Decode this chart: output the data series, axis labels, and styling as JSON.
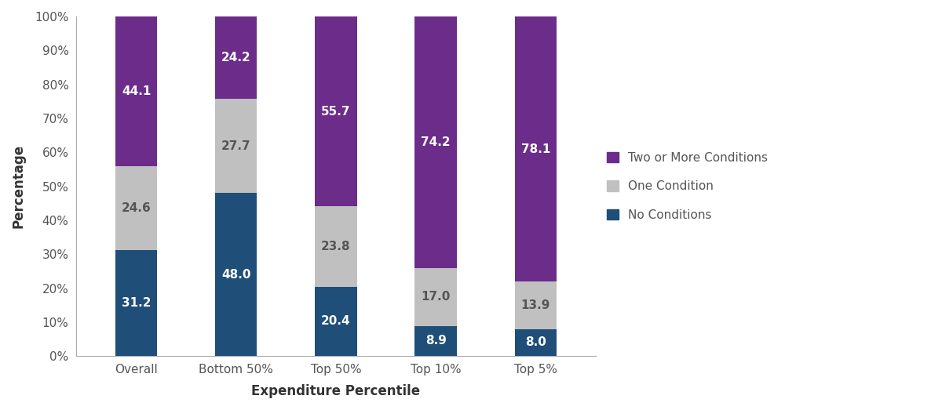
{
  "categories": [
    "Overall",
    "Bottom 50%",
    "Top 50%",
    "Top 10%",
    "Top 5%"
  ],
  "no_conditions": [
    31.2,
    48.0,
    20.4,
    8.9,
    8.0
  ],
  "one_condition": [
    24.6,
    27.7,
    23.8,
    17.0,
    13.9
  ],
  "two_or_more": [
    44.1,
    24.2,
    55.7,
    74.2,
    78.1
  ],
  "color_no": "#1F4E79",
  "color_one": "#C0C0C0",
  "color_two": "#6B2C8A",
  "label_no": "No Conditions",
  "label_one": "One Condition",
  "label_two": "Two or More Conditions",
  "xlabel": "Expenditure Percentile",
  "ylabel": "Percentage",
  "ylim": [
    0,
    100
  ],
  "yticks": [
    0,
    10,
    20,
    30,
    40,
    50,
    60,
    70,
    80,
    90,
    100
  ],
  "ytick_labels": [
    "0%",
    "10%",
    "20%",
    "30%",
    "40%",
    "50%",
    "60%",
    "70%",
    "80%",
    "90%",
    "100%"
  ],
  "bar_width": 0.42,
  "label_fontsize": 11,
  "axis_label_fontsize": 12,
  "tick_fontsize": 11,
  "legend_fontsize": 11,
  "text_color_bars": "#FFFFFF",
  "label_color_one": "#555555",
  "background_color": "#FFFFFF"
}
